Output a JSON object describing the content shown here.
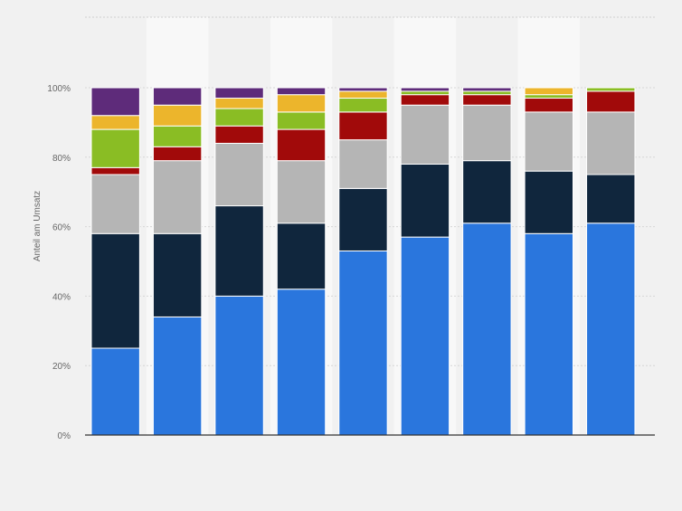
{
  "chart_data": {
    "type": "bar",
    "stacked": true,
    "ylabel": "Anteil am Umsatz",
    "ylim": [
      0,
      100
    ],
    "y_ticks": [
      0,
      20,
      40,
      60,
      80,
      100
    ],
    "y_tick_labels": [
      "0%",
      "20%",
      "40%",
      "60%",
      "80%",
      "100%"
    ],
    "grid": true,
    "bar_count": 9,
    "series": [
      {
        "color": "#2a76dd",
        "values": [
          25,
          34,
          40,
          42,
          53,
          57,
          61,
          58,
          61
        ]
      },
      {
        "color": "#10263d",
        "values": [
          33,
          24,
          26,
          19,
          18,
          21,
          18,
          18,
          14
        ]
      },
      {
        "color": "#b5b5b5",
        "values": [
          17,
          21,
          18,
          18,
          14,
          17,
          16,
          17,
          18
        ]
      },
      {
        "color": "#a10a0a",
        "values": [
          2,
          4,
          5,
          9,
          8,
          3,
          3,
          4,
          6
        ]
      },
      {
        "color": "#8abd24",
        "values": [
          11,
          6,
          5,
          5,
          4,
          1,
          1,
          1,
          1
        ]
      },
      {
        "color": "#ecb52c",
        "values": [
          4,
          6,
          3,
          5,
          2,
          0,
          0,
          2,
          0
        ]
      },
      {
        "color": "#5e2b7a",
        "values": [
          8,
          5,
          3,
          2,
          1,
          1,
          1,
          0,
          0
        ]
      }
    ]
  }
}
